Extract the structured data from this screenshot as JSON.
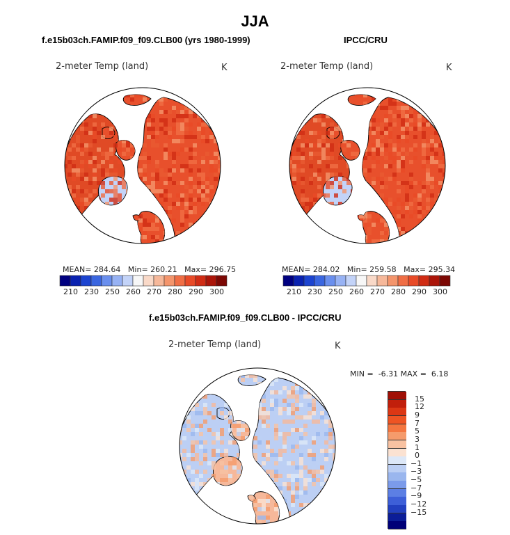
{
  "title": "JJA",
  "panels": [
    {
      "title": "f.e15b03ch.FAMIP.f09_f09.CLB00 (yrs 1980-1999)",
      "variable": "2-meter Temp (land)",
      "units": "K",
      "stats": {
        "mean_label": "MEAN=",
        "mean": "284.64",
        "min_label": "Min=",
        "min": "260.21",
        "max_label": "Max=",
        "max": "296.75"
      }
    },
    {
      "title": "IPCC/CRU",
      "variable": "2-meter Temp (land)",
      "units": "K",
      "stats": {
        "mean_label": "MEAN=",
        "mean": "284.02",
        "min_label": "Min=",
        "min": "259.58",
        "max_label": "Max=",
        "max": "295.34"
      }
    },
    {
      "title": "f.e15b03ch.FAMIP.f09_f09.CLB00 - IPCC/CRU",
      "variable": "2-meter Temp (land)",
      "units": "K",
      "stats": {
        "min_label": "MIN =",
        "min": "-6.31",
        "max_label": "MAX =",
        "max": "6.18"
      }
    }
  ],
  "abs_colorbar": {
    "colors": [
      "#000080",
      "#0a22b0",
      "#1c44d0",
      "#3a66e0",
      "#6a8fee",
      "#97b2f4",
      "#c3d3f8",
      "#f7f7f7",
      "#f9d9c8",
      "#f6b89a",
      "#f4956c",
      "#f06e45",
      "#e84a27",
      "#d02c14",
      "#ab1509",
      "#7c0804"
    ],
    "tick_labels": [
      "210",
      "230",
      "250",
      "260",
      "270",
      "280",
      "290",
      "300"
    ]
  },
  "diff_colorbar": {
    "colors": [
      "#a01006",
      "#c11f0b",
      "#dc3714",
      "#ee5423",
      "#f47640",
      "#f59b6c",
      "#f8c2a2",
      "#fbe2d2",
      "#dde8f8",
      "#bccff4",
      "#9ab6ee",
      "#7b9bea",
      "#5c7fe4",
      "#3d5fd8",
      "#2240c0",
      "#0b1d98",
      "#000078"
    ],
    "tick_labels": [
      "15",
      "12",
      "9",
      "7",
      "5",
      "3",
      "1",
      "0",
      "−1",
      "−3",
      "−5",
      "−7",
      "−9",
      "−12",
      "−15"
    ]
  },
  "colors": {
    "ocean": "#ffffff",
    "coast": "#000000",
    "land_warm": "#e8502c",
    "ice_abs": "#c3d3f8",
    "diff_pos": "#f6b89a",
    "diff_neg": "#bccff4"
  }
}
